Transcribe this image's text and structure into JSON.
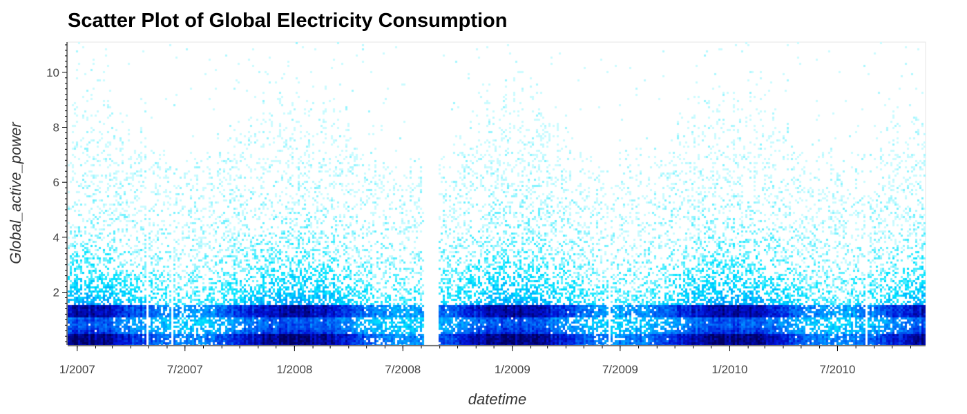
{
  "chart_data": {
    "type": "scatter",
    "title": "Scatter Plot of Global Electricity Consumption",
    "xlabel": "datetime",
    "ylabel": "Global_active_power",
    "x_range": [
      "2006-12-16",
      "2010-11-26"
    ],
    "ylim": [
      0.08,
      11.1
    ],
    "x_ticks": [
      {
        "date": "2007-01-01",
        "label": "1/2007"
      },
      {
        "date": "2007-07-01",
        "label": "7/2007"
      },
      {
        "date": "2008-01-01",
        "label": "1/2008"
      },
      {
        "date": "2008-07-01",
        "label": "7/2008"
      },
      {
        "date": "2009-01-01",
        "label": "1/2009"
      },
      {
        "date": "2009-07-01",
        "label": "7/2009"
      },
      {
        "date": "2010-01-01",
        "label": "1/2010"
      },
      {
        "date": "2010-07-01",
        "label": "7/2010"
      }
    ],
    "y_ticks": [
      2,
      4,
      6,
      8,
      10
    ],
    "colormap": [
      "#f2ffff",
      "#00e5ff",
      "#0080ff",
      "#0010d8",
      "#000060"
    ],
    "dense_bands": [
      {
        "y_low": 0.1,
        "y_high": 0.5,
        "level": "highest"
      },
      {
        "y_low": 1.1,
        "y_high": 1.5,
        "level": "high"
      }
    ],
    "gaps": [
      {
        "start": "2007-04-28",
        "end": "2007-05-02"
      },
      {
        "start": "2007-06-08",
        "end": "2007-06-10"
      },
      {
        "start": "2008-08-05",
        "end": "2008-08-30"
      },
      {
        "start": "2009-06-13",
        "end": "2009-06-16"
      },
      {
        "start": "2010-03-26",
        "end": "2010-03-28"
      },
      {
        "start": "2010-08-18",
        "end": "2010-08-22"
      }
    ],
    "grid": false,
    "legend": false
  }
}
